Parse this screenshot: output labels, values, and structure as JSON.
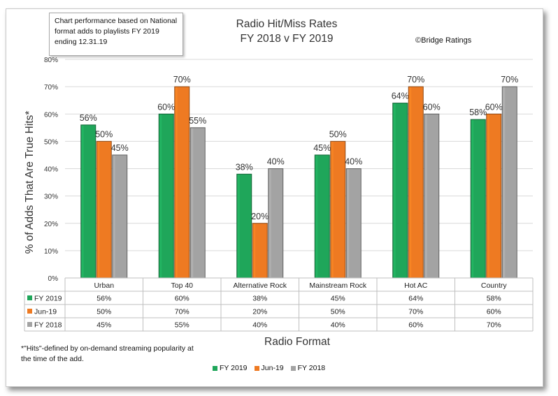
{
  "note": "Chart performance based on National format adds to playlists FY 2019 ending 12.31.19",
  "credit": "©Bridge Ratings",
  "footnote": "*\"Hits\"-defined by on-demand streaming popularity at the time of the add.",
  "chart_data": {
    "type": "bar",
    "title": "Radio Hit/Miss Rates",
    "subtitle": "FY 2018 v FY 2019",
    "xlabel": "Radio Format",
    "ylabel": "% of Adds That Are True Hits*",
    "ylim": [
      0,
      80
    ],
    "yticks": [
      "0%",
      "10%",
      "20%",
      "30%",
      "40%",
      "50%",
      "60%",
      "70%",
      "80%"
    ],
    "categories": [
      "Urban",
      "Top 40",
      "Alternative Rock",
      "Mainstream Rock",
      "Hot AC",
      "Country"
    ],
    "series": [
      {
        "name": "FY 2019",
        "color": "#1fa65a",
        "values": [
          56,
          60,
          38,
          45,
          64,
          58
        ],
        "labels": [
          "56%",
          "60%",
          "38%",
          "45%",
          "64%",
          "58%"
        ]
      },
      {
        "name": "Jun-19",
        "color": "#ee7a22",
        "values": [
          50,
          70,
          20,
          50,
          70,
          60
        ],
        "labels": [
          "50%",
          "70%",
          "20%",
          "50%",
          "70%",
          "60%"
        ]
      },
      {
        "name": "FY  2018",
        "color": "#a3a3a3",
        "values": [
          45,
          55,
          40,
          40,
          60,
          70
        ],
        "labels": [
          "45%",
          "55%",
          "40%",
          "40%",
          "60%",
          "70%"
        ]
      }
    ],
    "grid": true,
    "legend": "bottom-center",
    "data_table": true
  }
}
